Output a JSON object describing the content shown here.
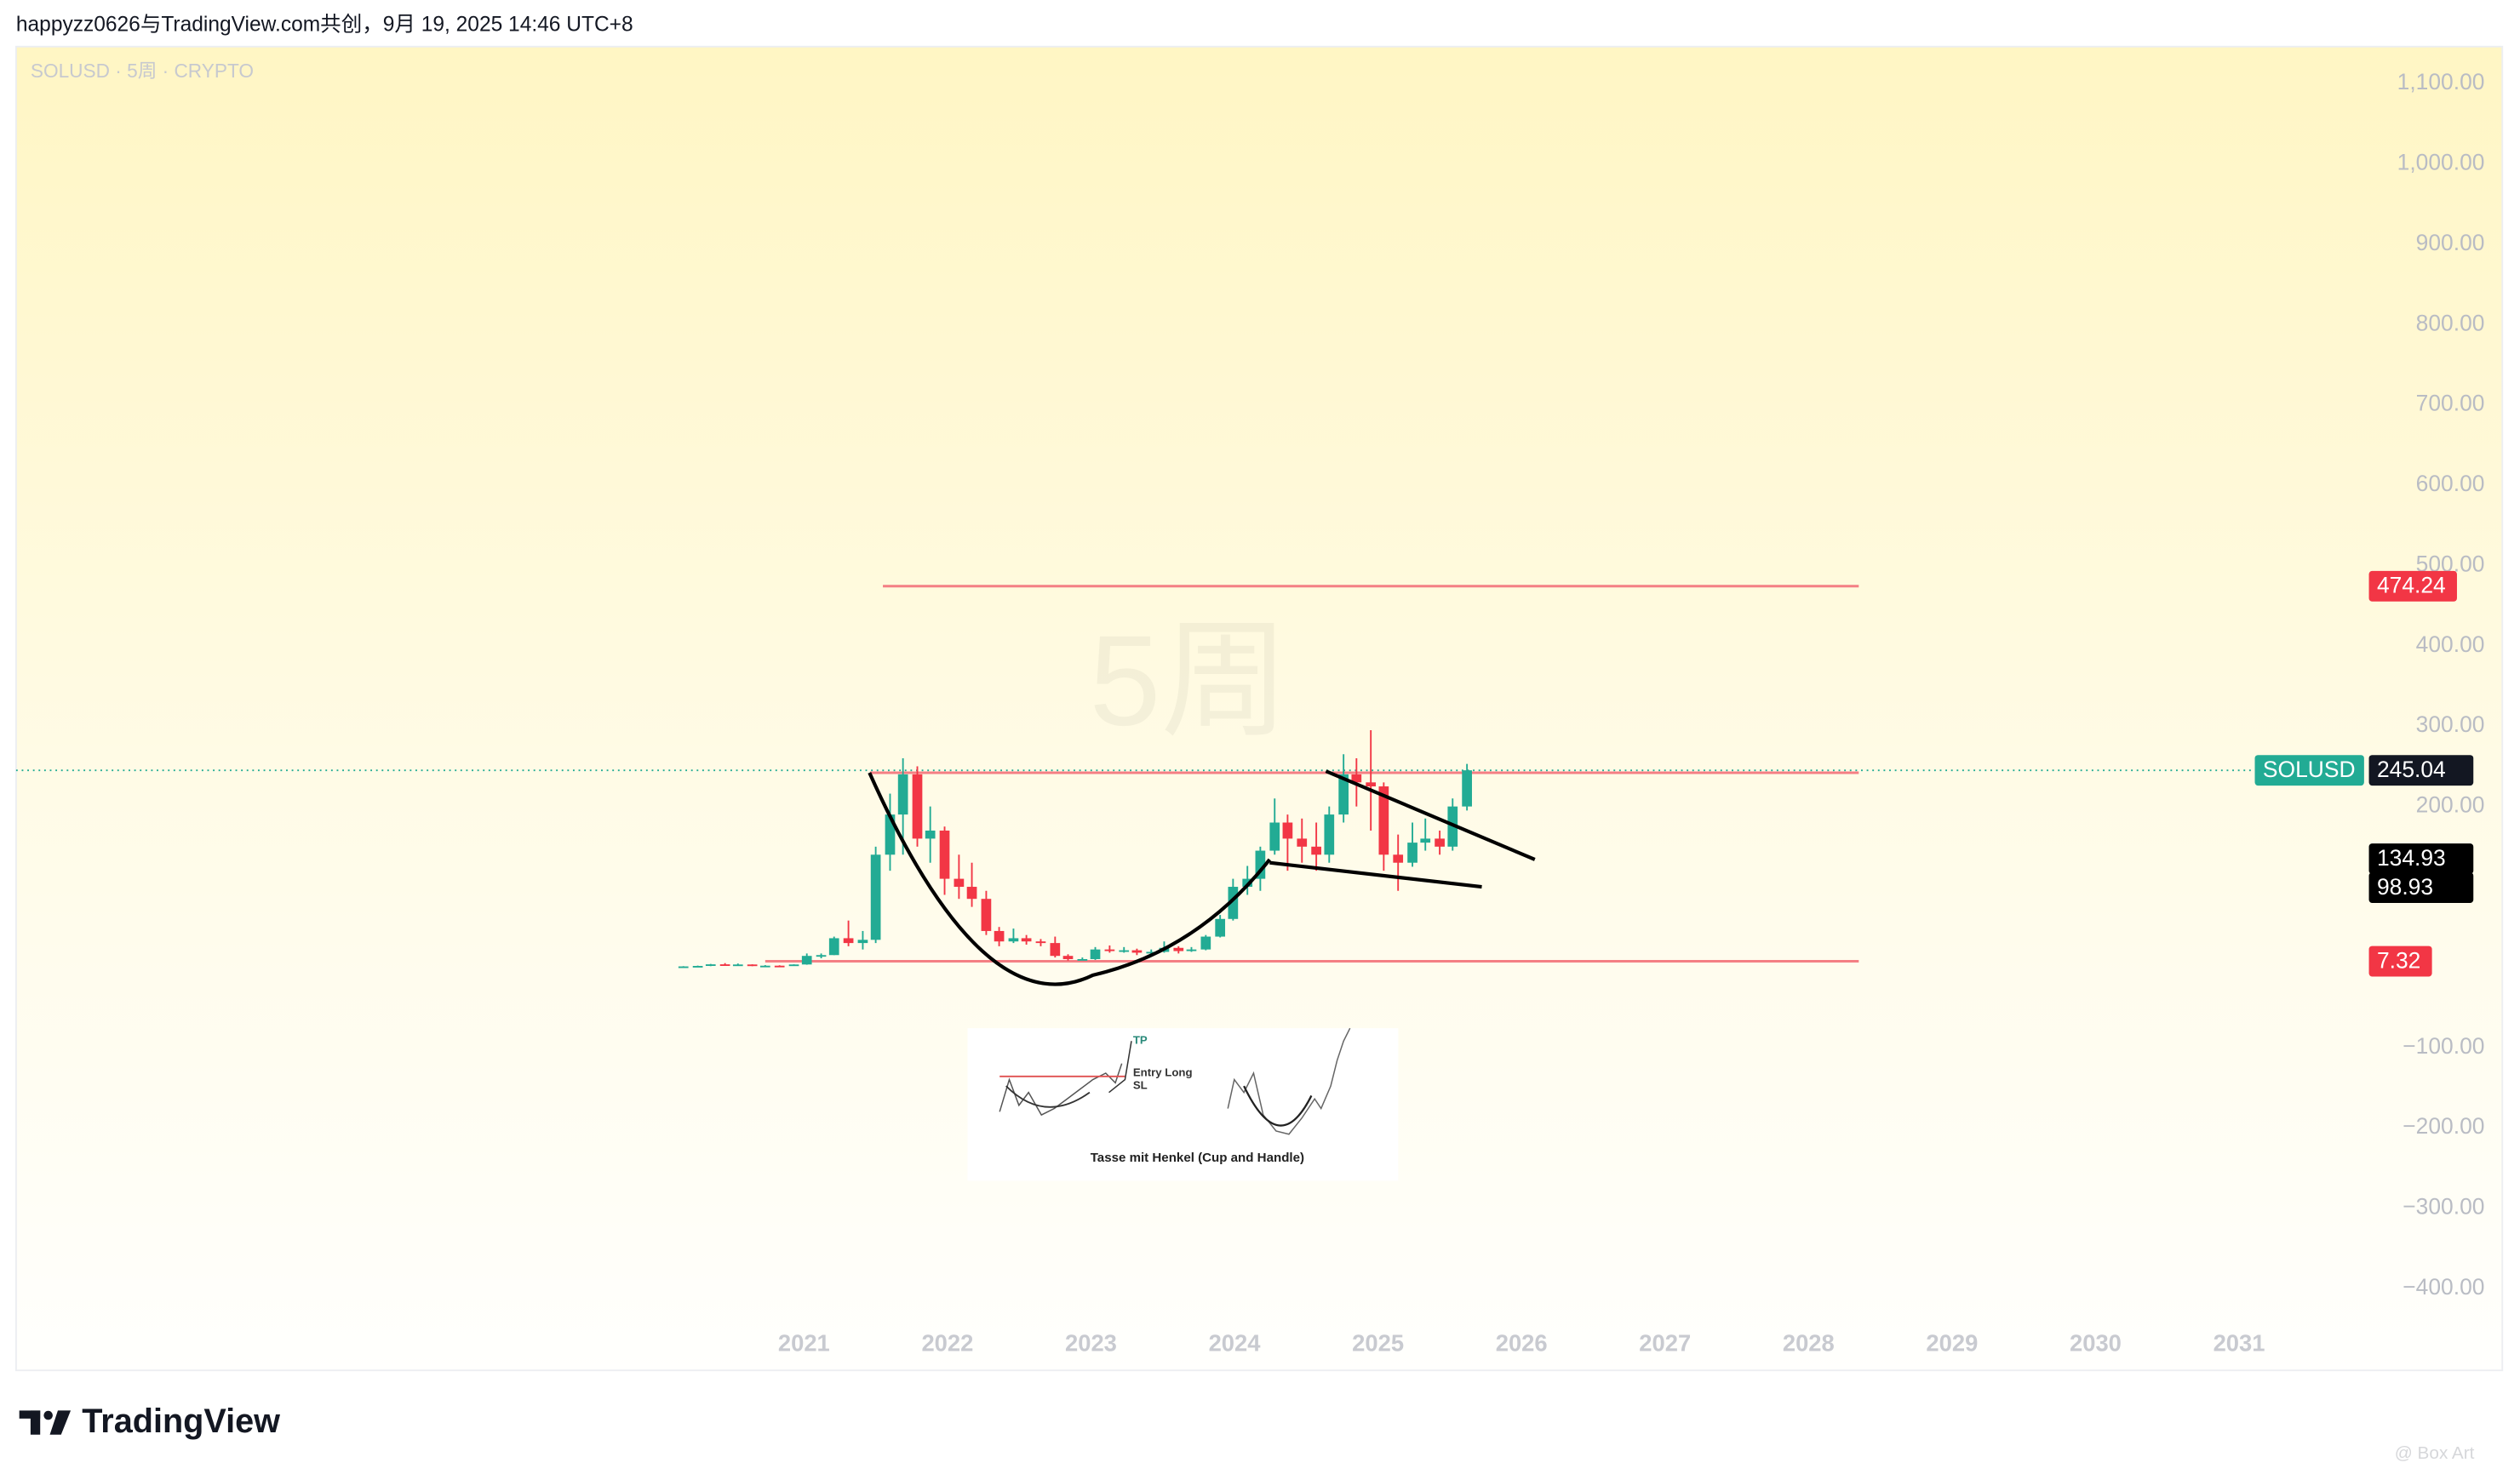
{
  "header": {
    "credit": "happyzz0626与TradingView.com共创，9月 19, 2025 14:46 UTC+8"
  },
  "footer": {
    "brand": "TradingView",
    "watermark": "@ Box Art"
  },
  "inset": {
    "tp": "TP",
    "entry": "Entry Long",
    "sl": "SL",
    "caption": "Tasse mit Henkel (Cup and Handle)"
  },
  "chart_data": {
    "type": "candlestick",
    "symbol_label": "SOLUSD · 5周 · CRYPTO",
    "watermark": "5周",
    "up_color": "#22ab94",
    "down_color": "#f23645",
    "grid": false,
    "xlim": [
      2015.51,
      2031.86
    ],
    "xticks": [
      2021,
      2022,
      2023,
      2024,
      2025,
      2026,
      2027,
      2028,
      2029,
      2030,
      2031
    ],
    "ylim": [
      -500,
      1144
    ],
    "yticks": [
      {
        "value": 1100,
        "label": "1,100.00"
      },
      {
        "value": 1000,
        "label": "1,000.00"
      },
      {
        "value": 900,
        "label": "900.00"
      },
      {
        "value": 800,
        "label": "800.00"
      },
      {
        "value": 700,
        "label": "700.00"
      },
      {
        "value": 600,
        "label": "600.00"
      },
      {
        "value": 500,
        "label": "500.00"
      },
      {
        "value": 400,
        "label": "400.00"
      },
      {
        "value": 300,
        "label": "300.00"
      },
      {
        "value": 200,
        "label": "200.00"
      },
      {
        "value": -100,
        "label": "−100.00"
      },
      {
        "value": -200,
        "label": "−200.00"
      },
      {
        "value": -300,
        "label": "−300.00"
      },
      {
        "value": -400,
        "label": "−400.00"
      }
    ],
    "x": [
      2020.16,
      2020.26,
      2020.35,
      2020.45,
      2020.54,
      2020.64,
      2020.73,
      2020.83,
      2020.93,
      2021.02,
      2021.12,
      2021.21,
      2021.31,
      2021.41,
      2021.5,
      2021.6,
      2021.69,
      2021.79,
      2021.88,
      2021.98,
      2022.08,
      2022.17,
      2022.27,
      2022.36,
      2022.46,
      2022.55,
      2022.65,
      2022.75,
      2022.84,
      2022.94,
      2023.03,
      2023.13,
      2023.23,
      2023.32,
      2023.42,
      2023.51,
      2023.61,
      2023.7,
      2023.8,
      2023.9,
      2023.99,
      2024.09,
      2024.18,
      2024.28,
      2024.37,
      2024.47,
      2024.57,
      2024.66,
      2024.76,
      2024.85,
      2024.95,
      2025.04,
      2025.14,
      2025.24,
      2025.33,
      2025.43,
      2025.52,
      2025.62
    ],
    "open": [
      0.8,
      0.9,
      1.5,
      3.5,
      2.9,
      3.3,
      1.5,
      1.8,
      1.5,
      3.3,
      14,
      15,
      36,
      30,
      34,
      140,
      190,
      240,
      160,
      170,
      110,
      100,
      85,
      45,
      32,
      36,
      32,
      30,
      14,
      10,
      10,
      22,
      20,
      21,
      18,
      19,
      24,
      20,
      22,
      38,
      60,
      100,
      110,
      145,
      180,
      160,
      150,
      140,
      190,
      240,
      230,
      225,
      140,
      130,
      155,
      160,
      150,
      200
    ],
    "high": [
      1.2,
      1.9,
      4.0,
      5.0,
      4.5,
      3.5,
      2.5,
      2.3,
      3.5,
      17,
      17,
      38,
      58,
      45,
      150,
      216,
      260,
      250,
      200,
      175,
      140,
      130,
      95,
      50,
      48,
      40,
      35,
      38,
      16,
      12,
      25,
      27,
      25,
      23,
      22,
      32,
      26,
      25,
      40,
      65,
      110,
      126,
      150,
      210,
      190,
      185,
      180,
      200,
      265,
      260,
      295,
      230,
      165,
      180,
      185,
      170,
      210,
      253
    ],
    "low": [
      0.5,
      0.8,
      1.2,
      2.2,
      2.3,
      1.2,
      1.1,
      1.4,
      1.5,
      3.0,
      11,
      15,
      26,
      22,
      30,
      120,
      140,
      150,
      130,
      90,
      85,
      75,
      40,
      26,
      30,
      28,
      26,
      12,
      8,
      9,
      9,
      18,
      18,
      15,
      16,
      18,
      17,
      19,
      21,
      37,
      58,
      90,
      95,
      140,
      120,
      130,
      120,
      130,
      180,
      200,
      170,
      120,
      95,
      125,
      145,
      140,
      145,
      195
    ],
    "close": [
      0.9,
      1.5,
      3.5,
      2.9,
      3.3,
      1.5,
      1.8,
      1.5,
      3.3,
      14,
      15,
      36,
      30,
      34,
      140,
      190,
      240,
      160,
      170,
      110,
      100,
      85,
      45,
      32,
      36,
      32,
      30,
      14,
      10,
      10,
      22,
      20,
      21,
      18,
      19,
      24,
      20,
      22,
      38,
      60,
      100,
      110,
      145,
      180,
      160,
      150,
      140,
      190,
      240,
      230,
      225,
      140,
      130,
      155,
      160,
      150,
      200,
      245.04
    ],
    "last_price": {
      "symbol": "SOLUSD",
      "value": 245.04
    },
    "levels": [
      {
        "value": 474.24,
        "from": 2021.55,
        "to": 2028.35,
        "tagged": true
      },
      {
        "value": 242,
        "from": 2021.46,
        "to": 2028.35,
        "tagged": false
      },
      {
        "value": 7.32,
        "from": 2020.73,
        "to": 2028.35,
        "tagged": true
      }
    ],
    "trend_tags": [
      134.93,
      98.93
    ]
  }
}
